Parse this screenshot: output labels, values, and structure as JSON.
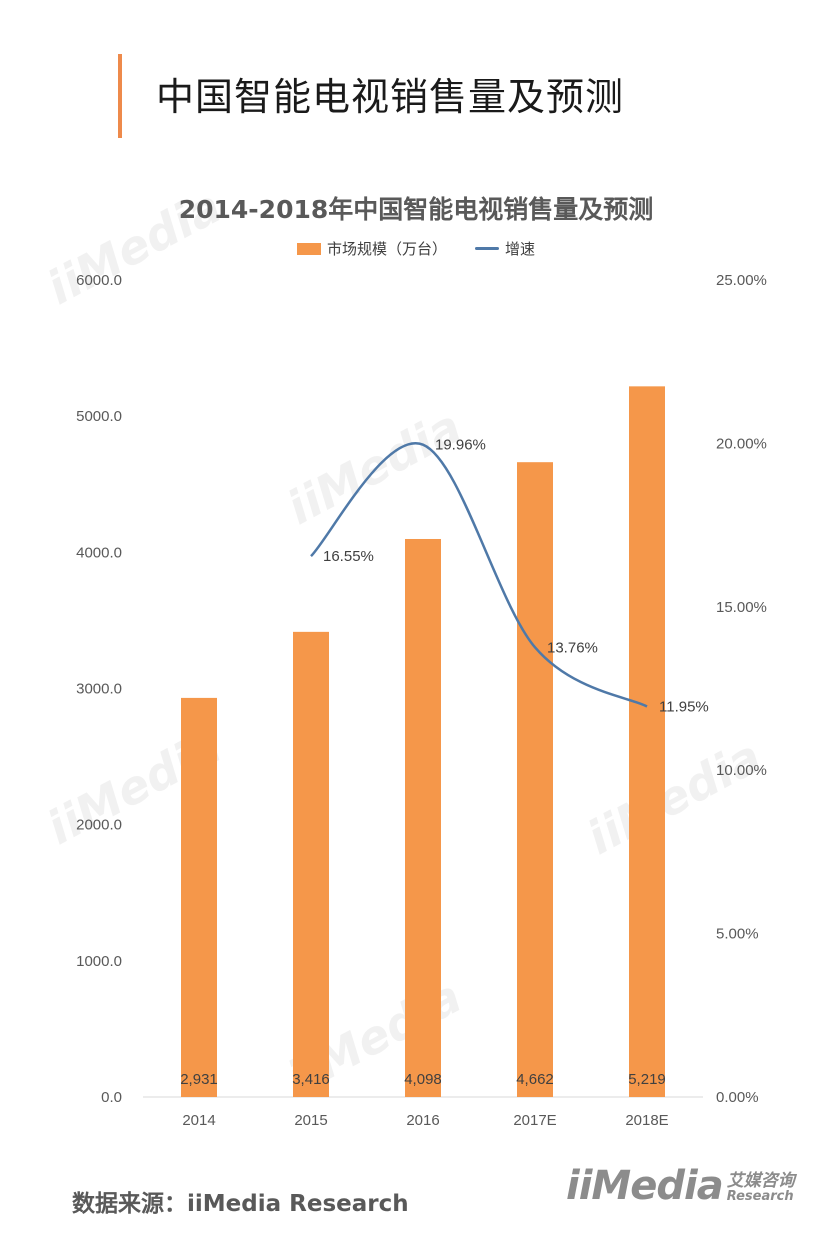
{
  "page_title": "中国智能电视销售量及预测",
  "source_text": "数据来源：iiMedia Research",
  "logo": {
    "main": "iiMedia",
    "cn": "艾媒咨询",
    "en": "Research"
  },
  "colors": {
    "bar": "#f5974a",
    "line": "#4f79a8",
    "accent": "#ee8a4b",
    "axis": "#d9d9d9",
    "text": "#595959"
  },
  "chart_data": {
    "type": "bar",
    "title": "2014-2018年中国智能电视销售量及预测",
    "categories": [
      "2014",
      "2015",
      "2016",
      "2017E",
      "2018E"
    ],
    "series": [
      {
        "name": "市场规模（万台）",
        "type": "bar",
        "axis": "left",
        "values": [
          2931,
          3416,
          4098,
          4662,
          5219
        ],
        "value_labels": [
          "2,931",
          "3,416",
          "4,098",
          "4,662",
          "5,219"
        ]
      },
      {
        "name": "增速",
        "type": "line",
        "axis": "right",
        "values": [
          null,
          16.55,
          19.96,
          13.76,
          11.95
        ],
        "value_labels": [
          "",
          "16.55%",
          "19.96%",
          "13.76%",
          "11.95%"
        ]
      }
    ],
    "y_left": {
      "min": 0,
      "max": 6000,
      "ticks": [
        "0.0",
        "1000.0",
        "2000.0",
        "3000.0",
        "4000.0",
        "5000.0",
        "6000.0"
      ]
    },
    "y_right": {
      "min": 0,
      "max": 25,
      "ticks": [
        "0.00%",
        "5.00%",
        "10.00%",
        "15.00%",
        "20.00%",
        "25.00%"
      ]
    },
    "legend_position": "top-center",
    "grid": false
  }
}
